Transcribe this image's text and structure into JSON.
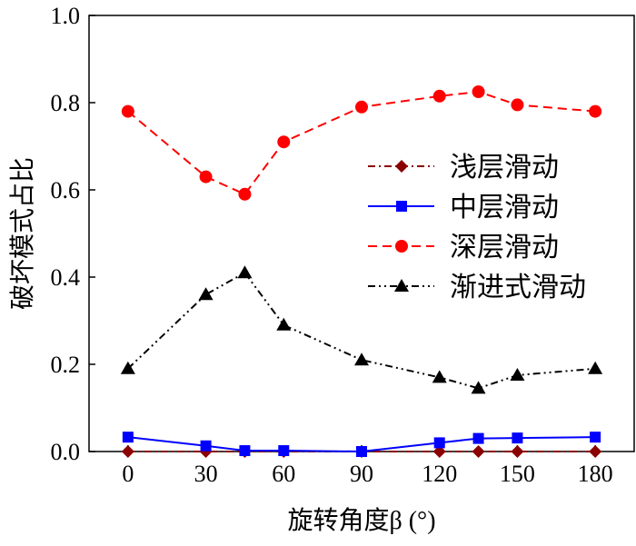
{
  "chart_data": {
    "type": "line",
    "title": "",
    "xlabel": "旋转角度β (°)",
    "ylabel": "破坏模式占比",
    "xlim": [
      -15,
      195
    ],
    "ylim": [
      0,
      1.0
    ],
    "xticks": [
      0,
      30,
      60,
      90,
      120,
      150,
      180
    ],
    "yticks": [
      0.0,
      0.2,
      0.4,
      0.6,
      0.8,
      1.0
    ],
    "ytick_labels": [
      "0.0",
      "0.2",
      "0.4",
      "0.6",
      "0.8",
      "1.0"
    ],
    "x": [
      0,
      30,
      45,
      60,
      90,
      120,
      135,
      150,
      180
    ],
    "legend_position": "center-right",
    "series": [
      {
        "name": "浅层滑动",
        "color": "#8b0000",
        "marker": "diamond",
        "dash": "8,4,2,4",
        "values": [
          0,
          0,
          0,
          0,
          0,
          0,
          0,
          0,
          0
        ]
      },
      {
        "name": "中层滑动",
        "color": "#0000ff",
        "marker": "square",
        "dash": "",
        "values": [
          0.033,
          0.013,
          0.002,
          0.002,
          0.0,
          0.02,
          0.03,
          0.031,
          0.033
        ]
      },
      {
        "name": "深层滑动",
        "color": "#ff0000",
        "marker": "circle",
        "dash": "10,6",
        "values": [
          0.78,
          0.63,
          0.59,
          0.71,
          0.79,
          0.815,
          0.825,
          0.795,
          0.78
        ]
      },
      {
        "name": "渐进式滑动",
        "color": "#000000",
        "marker": "triangle",
        "dash": "8,4,2,4,2,4",
        "values": [
          0.19,
          0.36,
          0.41,
          0.29,
          0.21,
          0.17,
          0.145,
          0.175,
          0.19
        ]
      }
    ]
  }
}
